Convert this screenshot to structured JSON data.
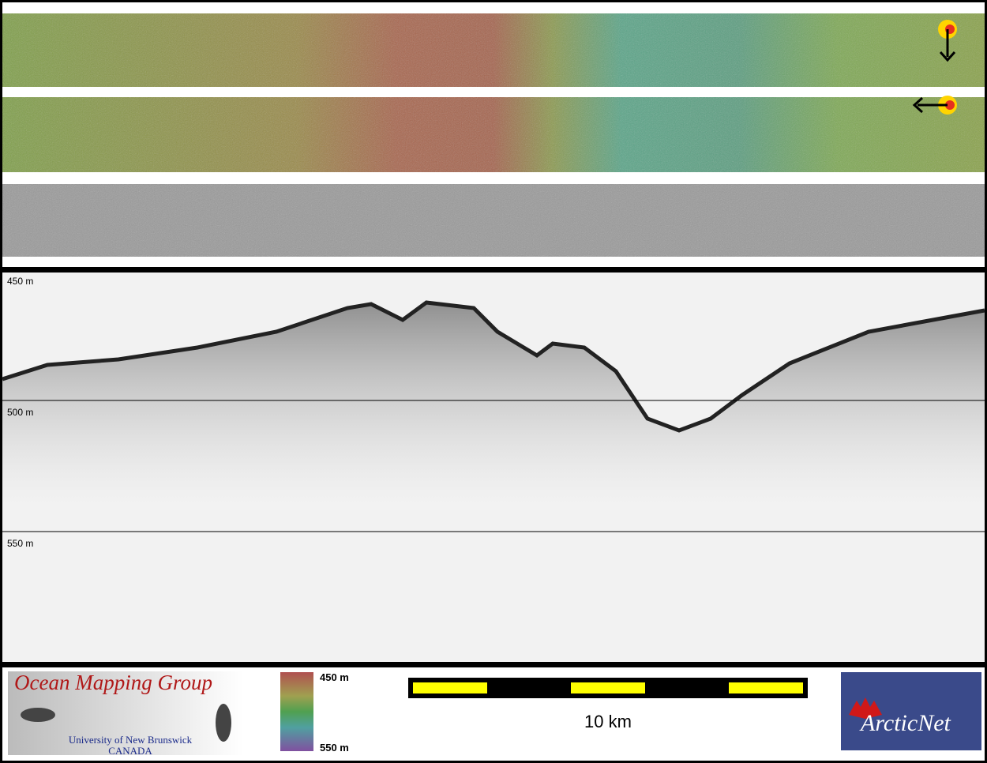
{
  "profile": {
    "depth_labels": [
      "450 m",
      "500 m",
      "550 m"
    ]
  },
  "footer": {
    "logo": {
      "title": "Ocean Mapping Group",
      "subtitle": "University of New Brunswick",
      "country": "CANADA"
    },
    "colorbar": {
      "top": "450 m",
      "bottom": "550 m"
    },
    "scale_bar": {
      "label": "10 km"
    },
    "partner_logo": {
      "text": "ArcticNet"
    }
  }
}
